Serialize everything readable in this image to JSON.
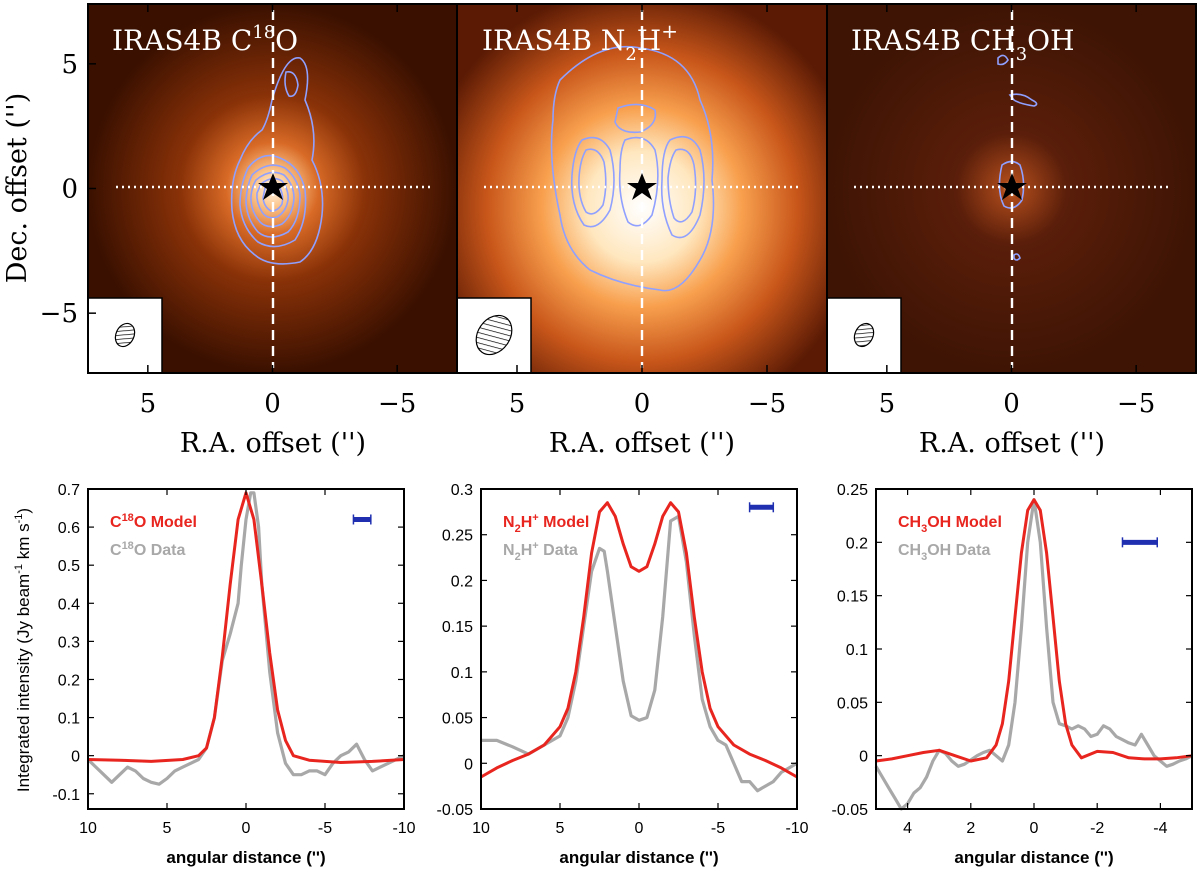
{
  "maps": [
    {
      "title": "IRAS4B C18O",
      "title_parts": {
        "pre": "IRAS4B C",
        "sup": "18",
        "post": "O"
      },
      "xlabel": "R.A. offset ('')",
      "x_ticks": [
        "5",
        "0",
        "−5"
      ],
      "x_tick_values": [
        5,
        0,
        -5
      ],
      "y_ticks": [
        "5",
        "0",
        "−5"
      ],
      "y_tick_values": [
        5,
        0,
        -5
      ],
      "xlim": [
        7.4,
        -7.4
      ],
      "ylim": [
        -7.4,
        7.4
      ]
    },
    {
      "title": "IRAS4B N2H+",
      "title_parts": {
        "pre": "IRAS4B N",
        "sub": "2",
        "mid": "H",
        "sup": "+"
      },
      "xlabel": "R.A. offset ('')",
      "x_ticks": [
        "5",
        "0",
        "−5"
      ],
      "x_tick_values": [
        5,
        0,
        -5
      ],
      "xlim": [
        7.4,
        -7.4
      ],
      "ylim": [
        -7.4,
        7.4
      ]
    },
    {
      "title": "IRAS4B CH3OH",
      "title_parts": {
        "pre": "IRAS4B CH",
        "sub": "3",
        "post": "OH"
      },
      "xlabel": "R.A. offset ('')",
      "x_ticks": [
        "5",
        "0",
        "−5"
      ],
      "x_tick_values": [
        5,
        0,
        -5
      ],
      "xlim": [
        7.4,
        -7.4
      ],
      "ylim": [
        -7.4,
        7.4
      ]
    }
  ],
  "map_ylabel": "Dec. offset ('')",
  "colors": {
    "model": "#e8251f",
    "data": "#a8a8a8",
    "beam_bar": "#1f2fb0",
    "contour": "#8fa0ff",
    "map_dark": "#3a0e00",
    "map_bright": "#fff6e6"
  },
  "profile_ylabel": "Integrated intensity (Jy beam-1 km s-1)",
  "chart_data": [
    {
      "type": "line",
      "xlabel": "angular distance ('')",
      "xlim": [
        10,
        -10
      ],
      "ylim": [
        -0.14,
        0.7
      ],
      "x_ticks": [
        10,
        5,
        0,
        -5,
        -10
      ],
      "y_ticks": [
        -0.1,
        0,
        0.1,
        0.2,
        0.3,
        0.4,
        0.5,
        0.6,
        0.7
      ],
      "beam_bar": {
        "x": [
          -6.8,
          -7.9
        ],
        "y": 0.62
      },
      "series": [
        {
          "name": "C18O Model",
          "name_parts": {
            "pre": "C",
            "sup": "18",
            "post": "O Model"
          },
          "role": "model",
          "x": [
            10,
            8,
            6,
            4,
            3,
            2.5,
            2,
            1.5,
            1,
            0.5,
            0,
            -0.5,
            -1,
            -1.5,
            -2,
            -2.5,
            -3,
            -4,
            -6,
            -8,
            -10
          ],
          "y": [
            -0.01,
            -0.012,
            -0.015,
            -0.01,
            0.0,
            0.02,
            0.1,
            0.26,
            0.45,
            0.62,
            0.69,
            0.62,
            0.45,
            0.27,
            0.12,
            0.04,
            0.0,
            -0.012,
            -0.018,
            -0.015,
            -0.01
          ]
        },
        {
          "name": "C18O Data",
          "name_parts": {
            "pre": "C",
            "sup": "18",
            "post": "O Data"
          },
          "role": "data",
          "x": [
            10,
            9.5,
            9,
            8.5,
            8,
            7.5,
            7,
            6.5,
            6,
            5.5,
            5,
            4.5,
            4,
            3.5,
            3,
            2.5,
            2,
            1.5,
            1,
            0.5,
            0.3,
            0,
            -0.3,
            -0.5,
            -0.8,
            -1,
            -1.5,
            -2,
            -2.5,
            -3,
            -3.5,
            -4,
            -4.5,
            -5,
            -5.5,
            -6,
            -6.5,
            -7,
            -7.5,
            -8,
            -8.5,
            -9,
            -9.5,
            -10
          ],
          "y": [
            -0.01,
            -0.03,
            -0.05,
            -0.07,
            -0.05,
            -0.03,
            -0.04,
            -0.06,
            -0.07,
            -0.075,
            -0.06,
            -0.04,
            -0.03,
            -0.02,
            -0.01,
            0.02,
            0.1,
            0.25,
            0.32,
            0.4,
            0.5,
            0.62,
            0.69,
            0.69,
            0.6,
            0.45,
            0.22,
            0.06,
            -0.02,
            -0.05,
            -0.05,
            -0.04,
            -0.04,
            -0.05,
            -0.02,
            0.0,
            0.01,
            0.03,
            -0.01,
            -0.04,
            -0.03,
            -0.02,
            -0.01,
            0.0
          ]
        }
      ]
    },
    {
      "type": "line",
      "xlabel": "angular distance ('')",
      "xlim": [
        10,
        -10
      ],
      "ylim": [
        -0.05,
        0.3
      ],
      "x_ticks": [
        10,
        5,
        0,
        -5,
        -10
      ],
      "y_ticks": [
        -0.05,
        0,
        0.05,
        0.1,
        0.15,
        0.2,
        0.25,
        0.3
      ],
      "beam_bar": {
        "x": [
          -7.0,
          -8.5
        ],
        "y": 0.28
      },
      "series": [
        {
          "name": "N2H+ Model",
          "name_parts": {
            "pre": "N",
            "sub": "2",
            "mid": "H",
            "sup": "+",
            "post": " Model"
          },
          "role": "model",
          "x": [
            10,
            9,
            8,
            7,
            6,
            5,
            4.5,
            4,
            3.5,
            3,
            2.5,
            2,
            1.5,
            1,
            0.5,
            0,
            -0.5,
            -1,
            -1.5,
            -2,
            -2.5,
            -3,
            -3.5,
            -4,
            -4.5,
            -5,
            -6,
            -7,
            -8,
            -9,
            -10
          ],
          "y": [
            -0.015,
            -0.005,
            0.003,
            0.01,
            0.02,
            0.04,
            0.06,
            0.1,
            0.16,
            0.23,
            0.275,
            0.285,
            0.27,
            0.24,
            0.215,
            0.21,
            0.215,
            0.24,
            0.27,
            0.285,
            0.275,
            0.23,
            0.16,
            0.1,
            0.06,
            0.04,
            0.02,
            0.01,
            0.003,
            -0.005,
            -0.015
          ]
        },
        {
          "name": "N2H+ Data",
          "name_parts": {
            "pre": "N",
            "sub": "2",
            "mid": "H",
            "sup": "+",
            "post": " Data"
          },
          "role": "data",
          "x": [
            10,
            9,
            8,
            7,
            6,
            5,
            4.5,
            4,
            3.5,
            3,
            2.5,
            2.2,
            2,
            1.5,
            1,
            0.5,
            0,
            -0.5,
            -1,
            -1.5,
            -2,
            -2.5,
            -3,
            -3.5,
            -4,
            -4.5,
            -5,
            -5.5,
            -6,
            -6.5,
            -7,
            -7.5,
            -8,
            -8.5,
            -9,
            -9.5,
            -10
          ],
          "y": [
            0.025,
            0.025,
            0.018,
            0.01,
            0.02,
            0.03,
            0.05,
            0.09,
            0.15,
            0.21,
            0.235,
            0.232,
            0.21,
            0.15,
            0.09,
            0.052,
            0.047,
            0.05,
            0.08,
            0.16,
            0.265,
            0.27,
            0.22,
            0.14,
            0.07,
            0.04,
            0.025,
            0.02,
            0.0,
            -0.02,
            -0.02,
            -0.03,
            -0.025,
            -0.02,
            -0.01,
            -0.005,
            0.0
          ]
        }
      ]
    },
    {
      "type": "line",
      "xlabel": "angular distance ('')",
      "xlim": [
        5,
        -5
      ],
      "ylim": [
        -0.05,
        0.25
      ],
      "x_ticks": [
        4,
        2,
        0,
        -2,
        -4
      ],
      "y_ticks": [
        -0.05,
        0,
        0.05,
        0.1,
        0.15,
        0.2,
        0.25
      ],
      "beam_bar": {
        "x": [
          -2.8,
          -3.9
        ],
        "y": 0.2
      },
      "series": [
        {
          "name": "CH3OH Model",
          "name_parts": {
            "pre": "CH",
            "sub": "3",
            "post": "OH Model"
          },
          "role": "model",
          "x": [
            5,
            4.5,
            4,
            3.5,
            3,
            2.5,
            2,
            1.5,
            1.2,
            1,
            0.8,
            0.6,
            0.4,
            0.2,
            0,
            -0.2,
            -0.4,
            -0.6,
            -0.8,
            -1,
            -1.2,
            -1.5,
            -2,
            -2.5,
            -3,
            -3.5,
            -4,
            -4.5,
            -5
          ],
          "y": [
            -0.005,
            -0.003,
            0.0,
            0.003,
            0.005,
            0.0,
            -0.005,
            -0.002,
            0.01,
            0.03,
            0.07,
            0.13,
            0.19,
            0.23,
            0.24,
            0.23,
            0.19,
            0.13,
            0.07,
            0.03,
            0.01,
            -0.002,
            0.004,
            0.003,
            -0.002,
            -0.003,
            -0.003,
            -0.002,
            0.0
          ]
        },
        {
          "name": "CH3OH Data",
          "name_parts": {
            "pre": "CH",
            "sub": "3",
            "post": "OH Data"
          },
          "role": "data",
          "x": [
            5,
            4.8,
            4.6,
            4.4,
            4.2,
            4,
            3.8,
            3.6,
            3.4,
            3.2,
            3,
            2.8,
            2.6,
            2.4,
            2.2,
            2,
            1.8,
            1.6,
            1.4,
            1.2,
            1,
            0.8,
            0.6,
            0.4,
            0.2,
            0,
            -0.2,
            -0.4,
            -0.6,
            -0.8,
            -1,
            -1.2,
            -1.4,
            -1.6,
            -1.8,
            -2,
            -2.2,
            -2.4,
            -2.6,
            -2.8,
            -3,
            -3.2,
            -3.4,
            -3.6,
            -3.8,
            -4,
            -4.2,
            -4.4,
            -4.6,
            -4.8,
            -5
          ],
          "y": [
            -0.01,
            -0.02,
            -0.03,
            -0.04,
            -0.05,
            -0.045,
            -0.035,
            -0.03,
            -0.02,
            -0.005,
            0.005,
            0.002,
            -0.005,
            -0.01,
            -0.008,
            -0.004,
            0.0,
            0.003,
            0.005,
            0.0,
            -0.005,
            0.01,
            0.05,
            0.12,
            0.2,
            0.24,
            0.2,
            0.12,
            0.05,
            0.03,
            0.028,
            0.025,
            0.028,
            0.025,
            0.018,
            0.02,
            0.028,
            0.025,
            0.018,
            0.015,
            0.012,
            0.01,
            0.02,
            0.01,
            0.0,
            -0.005,
            -0.01,
            -0.008,
            -0.005,
            -0.003,
            0.0
          ]
        }
      ]
    }
  ]
}
